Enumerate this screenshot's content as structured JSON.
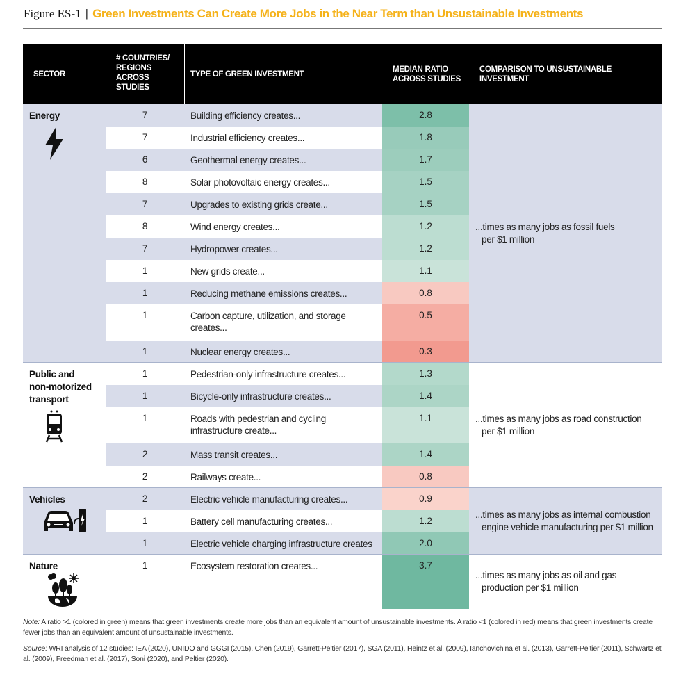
{
  "figure": {
    "label": "Figure ES-1",
    "separator": "|",
    "title": "Green Investments Can Create More Jobs in the Near Term than Unsustainable Investments"
  },
  "headers": {
    "sector": "SECTOR",
    "countries": [
      "# COUNTRIES/",
      "REGIONS",
      "ACROSS",
      "STUDIES"
    ],
    "type": "TYPE OF GREEN INVESTMENT",
    "ratio": [
      "MEDIAN RATIO",
      "ACROSS STUDIES"
    ],
    "comparison": [
      "COMPARISON TO UNSUSTAINABLE",
      "INVESTMENT"
    ]
  },
  "colors": {
    "green_high": "#6fb8a0",
    "green_low": "#eaf3ee",
    "red_low": "#fbdcd5",
    "red_high": "#f29a8f",
    "stripe": "#d8dcea",
    "header": "#000000",
    "title": "#f5b21a"
  },
  "sectors": [
    {
      "name": [
        "Energy"
      ],
      "icon": "lightning-bolt-icon",
      "comparison": [
        "...times as many jobs as fossil fuels",
        "per $1 million"
      ],
      "rows": [
        {
          "countries": "7",
          "type": [
            "Building efficiency creates..."
          ],
          "ratio": 2.8
        },
        {
          "countries": "7",
          "type": [
            "Industrial efficiency creates..."
          ],
          "ratio": 1.8
        },
        {
          "countries": "6",
          "type": [
            "Geothermal energy creates..."
          ],
          "ratio": 1.7
        },
        {
          "countries": "8",
          "type": [
            "Solar photovoltaic energy creates..."
          ],
          "ratio": 1.5
        },
        {
          "countries": "7",
          "type": [
            "Upgrades to existing grids create..."
          ],
          "ratio": 1.5
        },
        {
          "countries": "8",
          "type": [
            "Wind energy creates..."
          ],
          "ratio": 1.2
        },
        {
          "countries": "7",
          "type": [
            "Hydropower creates..."
          ],
          "ratio": 1.2
        },
        {
          "countries": "1",
          "type": [
            "New grids create..."
          ],
          "ratio": 1.1
        },
        {
          "countries": "1",
          "type": [
            "Reducing methane emissions creates..."
          ],
          "ratio": 0.8
        },
        {
          "countries": "1",
          "type": [
            "Carbon capture, utilization, and storage",
            "creates..."
          ],
          "ratio": 0.5
        },
        {
          "countries": "1",
          "type": [
            "Nuclear energy creates..."
          ],
          "ratio": 0.3
        }
      ]
    },
    {
      "name": [
        "Public and",
        "non-motorized",
        "transport"
      ],
      "icon": "train-icon",
      "comparison": [
        "...times as many jobs as road construction",
        "per $1 million"
      ],
      "rows": [
        {
          "countries": "1",
          "type": [
            "Pedestrian-only infrastructure creates..."
          ],
          "ratio": 1.3
        },
        {
          "countries": "1",
          "type": [
            "Bicycle-only infrastructure creates..."
          ],
          "ratio": 1.4
        },
        {
          "countries": "1",
          "type": [
            "Roads with pedestrian and cycling",
            "infrastructure create..."
          ],
          "ratio": 1.1
        },
        {
          "countries": "2",
          "type": [
            "Mass transit creates..."
          ],
          "ratio": 1.4
        },
        {
          "countries": "2",
          "type": [
            "Railways create..."
          ],
          "ratio": 0.8
        }
      ]
    },
    {
      "name": [
        "Vehicles"
      ],
      "icon": "electric-car-charging-icon",
      "comparison": [
        "...times as many jobs as internal combustion",
        "engine vehicle manufacturing per $1 million"
      ],
      "rows": [
        {
          "countries": "2",
          "type": [
            "Electric vehicle manufacturing creates..."
          ],
          "ratio": 0.9
        },
        {
          "countries": "1",
          "type": [
            "Battery cell manufacturing creates..."
          ],
          "ratio": 1.2
        },
        {
          "countries": "1",
          "type": [
            "Electric vehicle charging infrastructure creates"
          ],
          "ratio": 2.0
        }
      ]
    },
    {
      "name": [
        "Nature"
      ],
      "icon": "trees-globe-icon",
      "comparison": [
        "...times as many jobs as oil and gas",
        "production per $1 million"
      ],
      "rows": [
        {
          "countries": "1",
          "type": [
            "Ecosystem restoration creates..."
          ],
          "ratio": 3.7
        }
      ]
    }
  ],
  "notes": {
    "note_label": "Note:",
    "note": " A ratio >1 (colored in green) means that green investments create more jobs than an equivalent amount of unsustainable investments. A ratio <1 (colored in red) means that green investments create fewer jobs than an equivalent amount of unsustainable investments.",
    "source_label": "Source:",
    "source": " WRI analysis of 12 studies: IEA (2020), UNIDO and GGGI (2015), Chen (2019), Garrett-Peltier (2017), SGA (2011), Heintz et al. (2009), Ianchovichina et al. (2013), Garrett-Peltier (2011), Schwartz et al. (2009), Freedman et al. (2017), Soni (2020), and Peltier (2020)."
  }
}
